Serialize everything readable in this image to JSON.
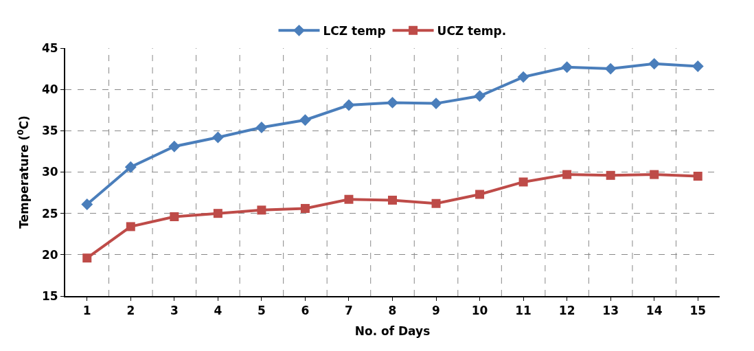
{
  "chart_data": {
    "type": "line",
    "xlabel": "No. of Days",
    "ylabel": "Temperature ($^{0}$C)",
    "x": [
      1,
      2,
      3,
      4,
      5,
      6,
      7,
      8,
      9,
      10,
      11,
      12,
      13,
      14,
      15
    ],
    "series": [
      {
        "name": "LCZ temp",
        "color": "#4a7ebb",
        "marker": "diamond",
        "values": [
          26.1,
          30.6,
          33.1,
          34.2,
          35.4,
          36.3,
          38.1,
          38.4,
          38.3,
          39.2,
          41.5,
          42.7,
          42.5,
          43.1,
          42.8
        ]
      },
      {
        "name": "UCZ temp.",
        "color": "#be4b48",
        "marker": "square",
        "values": [
          19.6,
          23.4,
          24.6,
          25.0,
          25.4,
          25.6,
          26.7,
          26.6,
          26.2,
          27.3,
          28.8,
          29.7,
          29.6,
          29.7,
          29.5
        ]
      }
    ],
    "xlim": [
      0.5,
      15.5
    ],
    "xticks": [
      1,
      2,
      3,
      4,
      5,
      6,
      7,
      8,
      9,
      10,
      11,
      12,
      13,
      14,
      15
    ],
    "ylim": [
      15,
      45
    ],
    "yticks": [
      15,
      20,
      25,
      30,
      35,
      40,
      45
    ],
    "grid": true,
    "legend": "top",
    "line_style": "solid"
  }
}
